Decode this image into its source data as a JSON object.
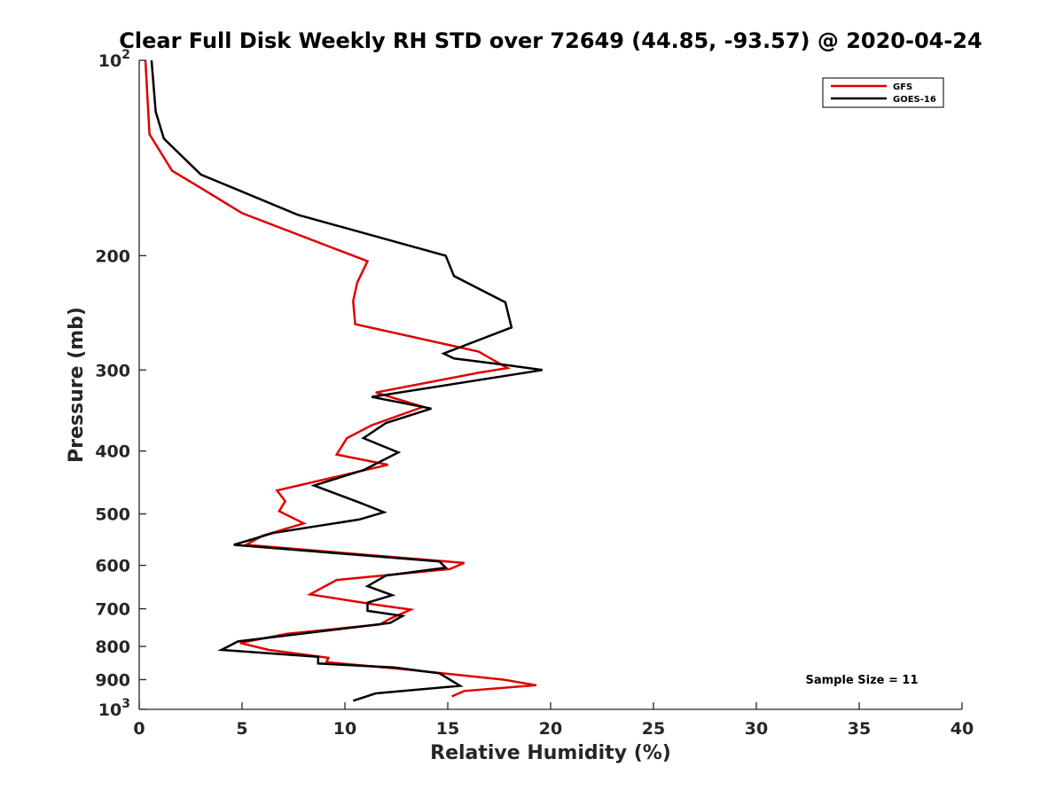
{
  "chart_data": {
    "type": "line",
    "title": "Clear Full Disk Weekly RH STD over 72649 (44.85, -93.57) @ 2020-04-24",
    "xlabel": "Relative Humidity (%)",
    "ylabel": "Pressure (mb)",
    "xlim": [
      0,
      40
    ],
    "ylim": [
      100,
      1000
    ],
    "yscale": "log",
    "yreversed": true,
    "xticks": [
      0,
      5,
      10,
      15,
      20,
      25,
      30,
      35,
      40
    ],
    "xtick_labels": [
      "0",
      "5",
      "10",
      "15",
      "20",
      "25",
      "30",
      "35",
      "40"
    ],
    "yticks": [
      200,
      300,
      400,
      500,
      600,
      700,
      800,
      900
    ],
    "ytick_labels": [
      "200",
      "300",
      "400",
      "500",
      "600",
      "700",
      "800",
      "900"
    ],
    "ytick_top": {
      "base": "10",
      "exp": "2"
    },
    "ytick_bottom": {
      "base": "10",
      "exp": "3"
    },
    "grid": false,
    "legend_position": "top-right",
    "annotation": "Sample Size = 11",
    "series": [
      {
        "name": "GFS",
        "color": "#e00000",
        "points": [
          [
            0.3,
            100
          ],
          [
            0.5,
            130
          ],
          [
            1.6,
            148
          ],
          [
            3.1,
            158
          ],
          [
            5.0,
            172
          ],
          [
            11.1,
            204
          ],
          [
            10.6,
            220
          ],
          [
            10.4,
            235
          ],
          [
            10.5,
            255
          ],
          [
            16.5,
            281
          ],
          [
            17.0,
            287
          ],
          [
            17.9,
            298
          ],
          [
            16.5,
            303
          ],
          [
            11.5,
            325
          ],
          [
            13.8,
            342
          ],
          [
            11.3,
            365
          ],
          [
            10.1,
            382
          ],
          [
            9.6,
            405
          ],
          [
            12.1,
            420
          ],
          [
            6.7,
            460
          ],
          [
            7.1,
            478
          ],
          [
            6.8,
            495
          ],
          [
            8.0,
            517
          ],
          [
            6.0,
            540
          ],
          [
            5.2,
            558
          ],
          [
            15.8,
            595
          ],
          [
            15.1,
            608
          ],
          [
            9.6,
            632
          ],
          [
            8.3,
            665
          ],
          [
            11.5,
            690
          ],
          [
            13.2,
            702
          ],
          [
            12.2,
            725
          ],
          [
            11.7,
            740
          ],
          [
            7.2,
            765
          ],
          [
            4.9,
            790
          ],
          [
            6.3,
            810
          ],
          [
            9.2,
            833
          ],
          [
            9.1,
            846
          ],
          [
            12.8,
            867
          ],
          [
            17.7,
            900
          ],
          [
            19.3,
            918
          ],
          [
            15.8,
            937
          ],
          [
            15.2,
            955
          ]
        ]
      },
      {
        "name": "GOES-16",
        "color": "#000000",
        "points": [
          [
            0.6,
            100
          ],
          [
            0.8,
            120
          ],
          [
            1.2,
            132
          ],
          [
            3.0,
            150
          ],
          [
            7.7,
            173
          ],
          [
            14.9,
            200
          ],
          [
            15.3,
            215
          ],
          [
            17.8,
            236
          ],
          [
            18.1,
            258
          ],
          [
            14.8,
            283
          ],
          [
            15.3,
            288
          ],
          [
            17.9,
            295
          ],
          [
            19.6,
            300
          ],
          [
            11.3,
            330
          ],
          [
            14.2,
            344
          ],
          [
            12.0,
            362
          ],
          [
            10.9,
            382
          ],
          [
            12.6,
            402
          ],
          [
            10.9,
            428
          ],
          [
            8.5,
            452
          ],
          [
            10.7,
            480
          ],
          [
            11.9,
            497
          ],
          [
            10.7,
            510
          ],
          [
            6.5,
            535
          ],
          [
            4.6,
            558
          ],
          [
            14.6,
            592
          ],
          [
            14.9,
            605
          ],
          [
            12.0,
            622
          ],
          [
            11.1,
            646
          ],
          [
            12.3,
            667
          ],
          [
            11.1,
            685
          ],
          [
            11.1,
            705
          ],
          [
            12.8,
            718
          ],
          [
            12.2,
            736
          ],
          [
            4.8,
            786
          ],
          [
            4.0,
            810
          ],
          [
            8.7,
            830
          ],
          [
            8.7,
            850
          ],
          [
            12.4,
            862
          ],
          [
            14.6,
            880
          ],
          [
            15.6,
            920
          ],
          [
            11.5,
            945
          ],
          [
            10.4,
            970
          ]
        ]
      }
    ]
  }
}
